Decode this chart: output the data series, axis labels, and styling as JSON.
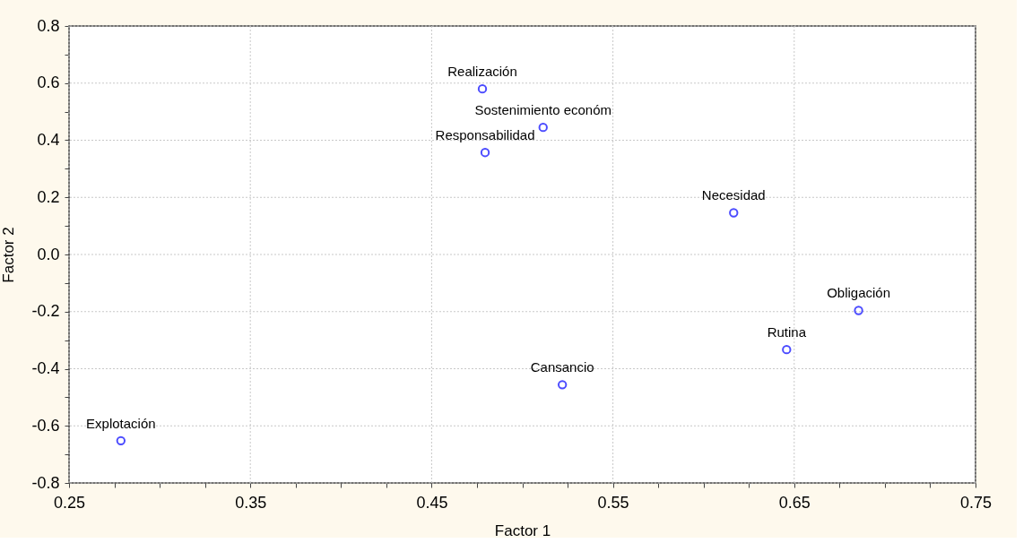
{
  "chart_data": {
    "type": "scatter",
    "xlabel": "Factor 1",
    "ylabel": "Factor 2",
    "x": [
      0.478,
      0.5115,
      0.4795,
      0.6166,
      0.6855,
      0.6458,
      0.5221,
      0.2786
    ],
    "series": [
      {
        "color": "#0000ff",
        "values": [
          0.58,
          0.445,
          0.357,
          0.146,
          -0.196,
          -0.333,
          -0.456,
          -0.652
        ],
        "value_labels": [
          "Realización",
          "Sostenimiento económ",
          "Responsabilidad",
          "Necesidad",
          "Obligación",
          "Rutina",
          "Cansancio",
          "Explotación"
        ]
      }
    ],
    "xlim": [
      0.25,
      0.75
    ],
    "ylim": [
      -0.8,
      0.8
    ],
    "xticks": [
      0.25,
      {
        "value": 0.275,
        "label": null
      },
      {
        "value": 0.3,
        "label": null
      },
      {
        "value": 0.325,
        "label": null
      },
      0.35,
      {
        "value": 0.375,
        "label": null
      },
      {
        "value": 0.4,
        "label": null
      },
      {
        "value": 0.425,
        "label": null
      },
      0.45,
      {
        "value": 0.475,
        "label": null
      },
      {
        "value": 0.5,
        "label": null
      },
      {
        "value": 0.525,
        "label": null
      },
      0.55,
      {
        "value": 0.575,
        "label": null
      },
      {
        "value": 0.6,
        "label": null
      },
      {
        "value": 0.625,
        "label": null
      },
      0.65,
      {
        "value": 0.675,
        "label": null
      },
      {
        "value": 0.7,
        "label": null
      },
      {
        "value": 0.725,
        "label": null
      },
      0.75
    ],
    "yticks": [
      -0.8,
      {
        "value": -0.7,
        "label": null
      },
      -0.6,
      {
        "value": -0.5,
        "label": null
      },
      -0.4,
      {
        "value": -0.3,
        "label": null
      },
      -0.2,
      {
        "value": -0.1,
        "label": null
      },
      {
        "value": 0,
        "label": "0.0"
      },
      {
        "value": 0.1,
        "label": null
      },
      0.2,
      {
        "value": 0.3,
        "label": null
      },
      0.4,
      {
        "value": 0.5,
        "label": null
      },
      0.6,
      {
        "value": 0.7,
        "label": null
      },
      0.8
    ],
    "grid": true,
    "marker": "circle"
  }
}
